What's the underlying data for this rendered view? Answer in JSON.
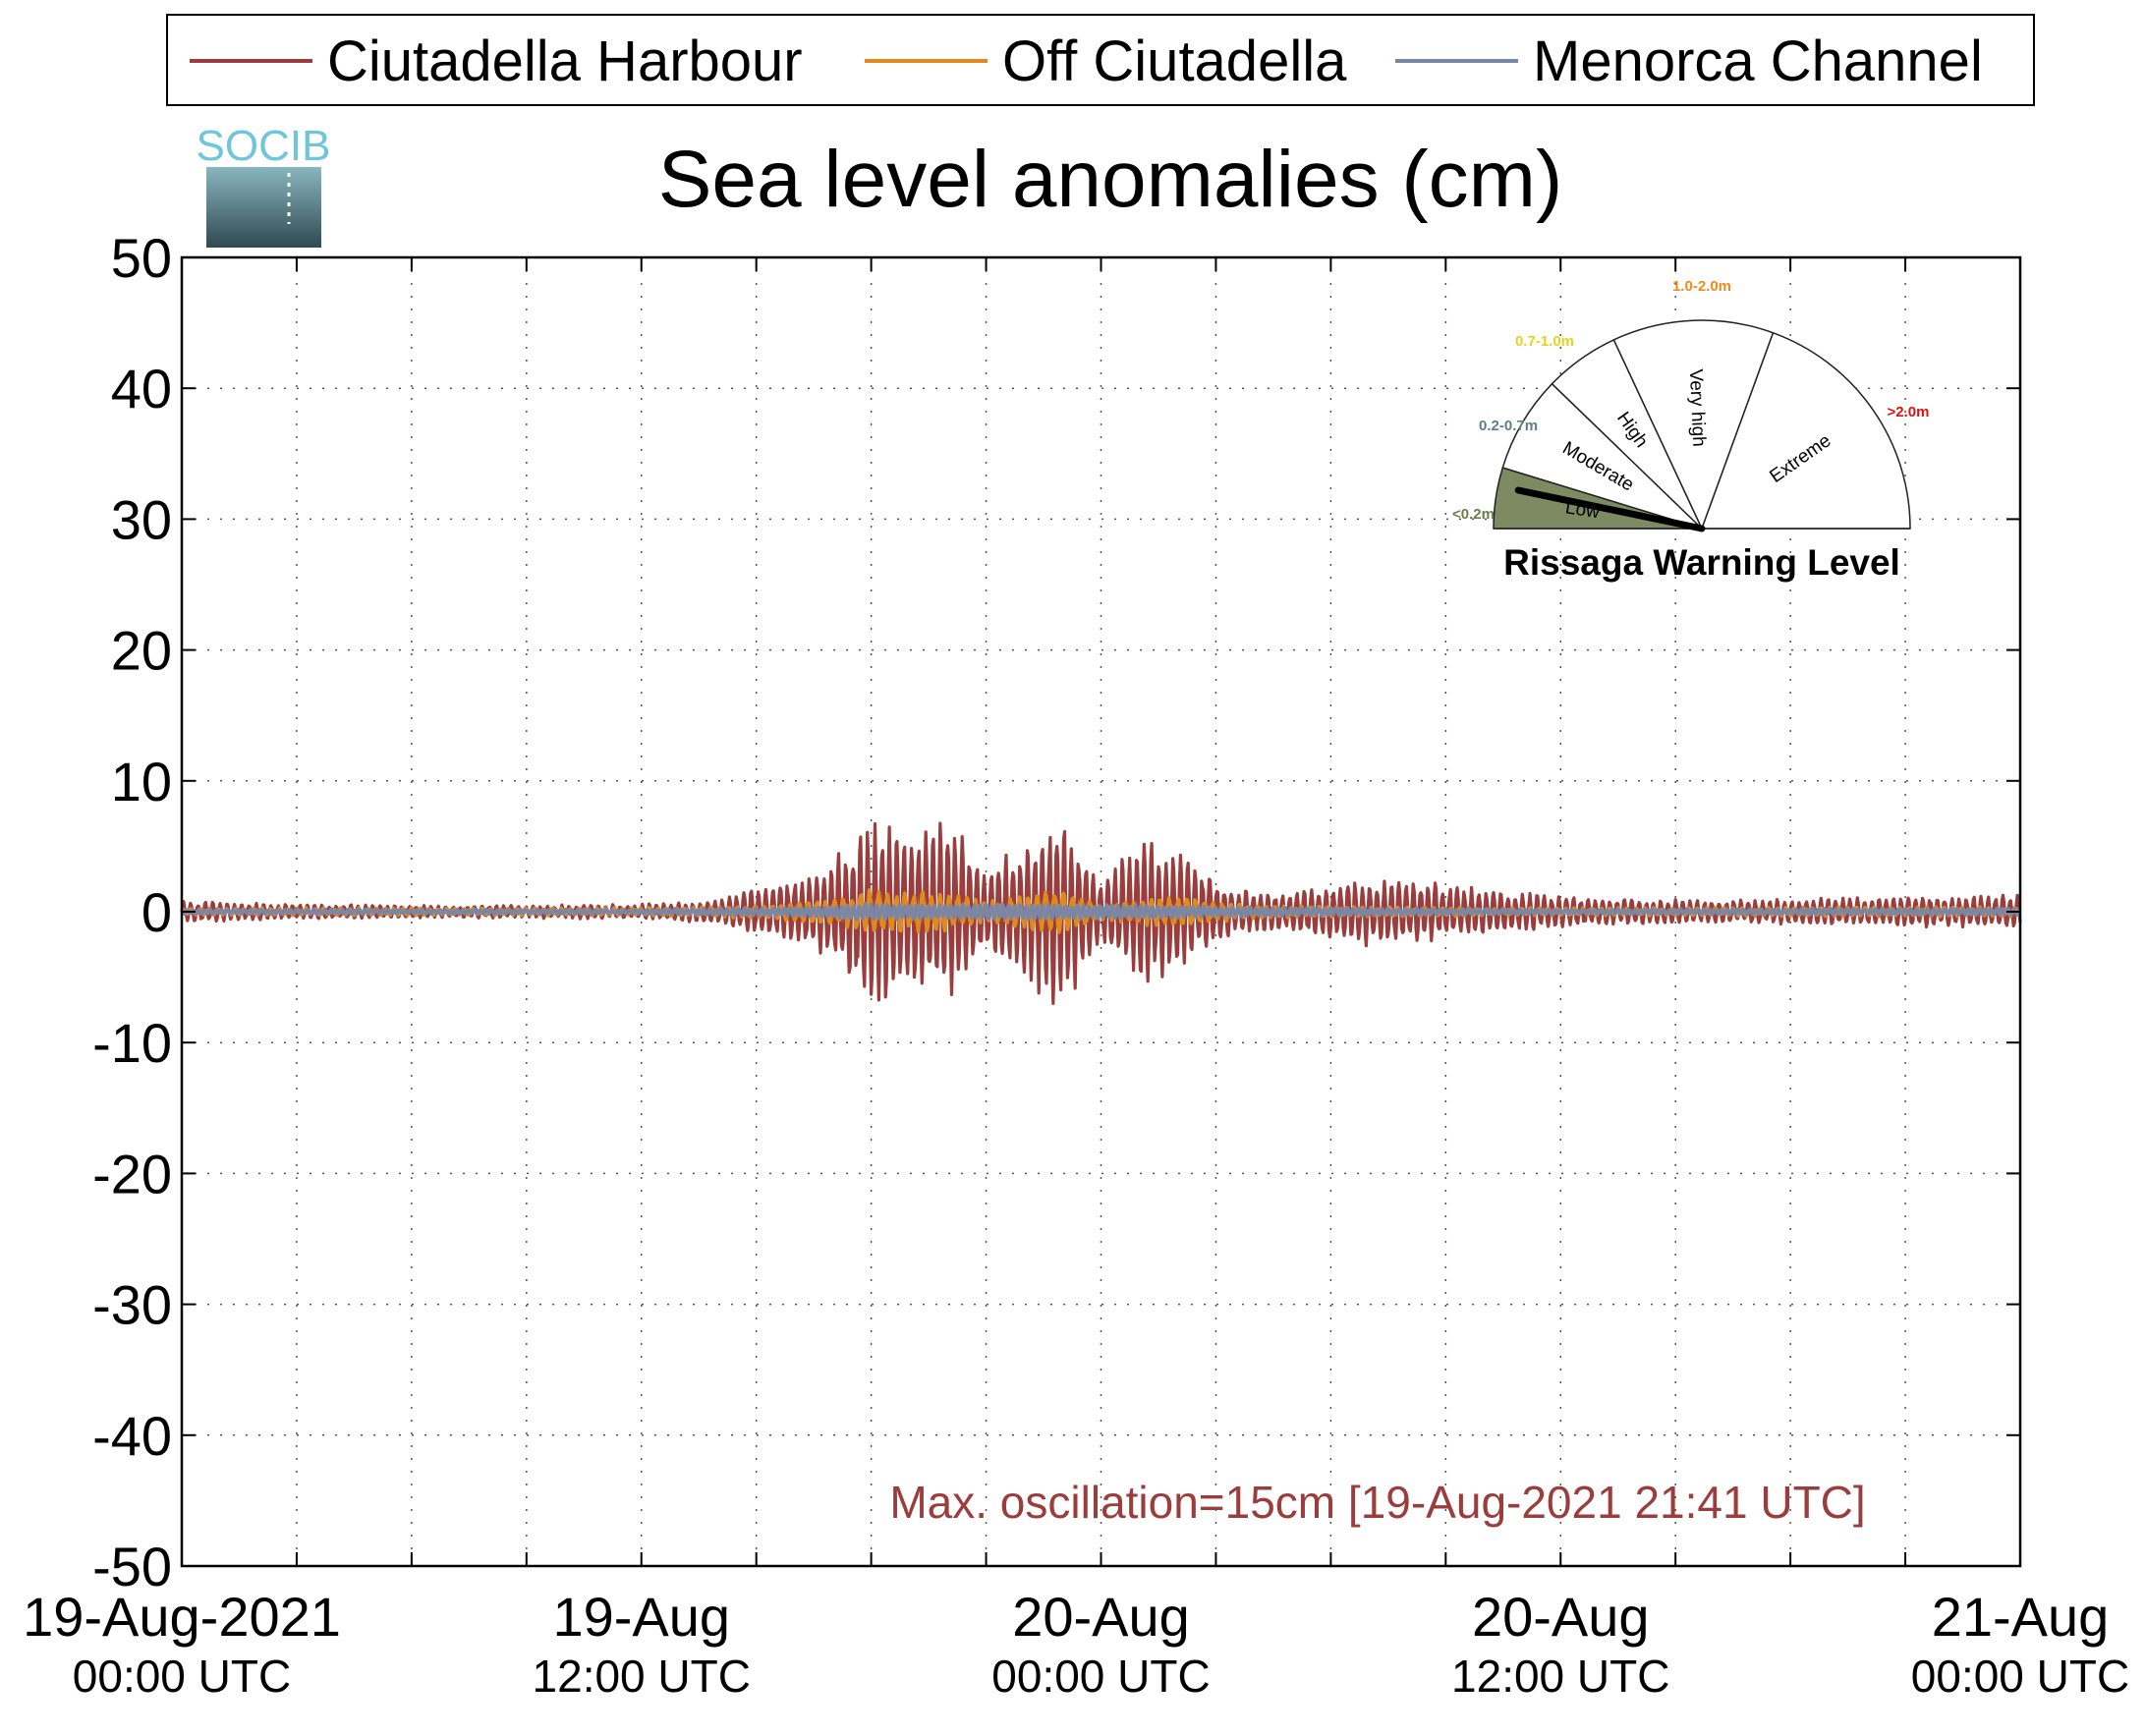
{
  "chart_data": {
    "type": "line",
    "title": "Sea level anomalies (cm)",
    "xlabel": "",
    "ylabel": "",
    "ylim": [
      -50,
      50
    ],
    "yticks": [
      50,
      40,
      30,
      20,
      10,
      0,
      -10,
      -20,
      -30,
      -40,
      -50
    ],
    "grid": true,
    "legend_position": "top",
    "x_range_hours": [
      0,
      48
    ],
    "x_start": "19-Aug-2021 00:00 UTC",
    "x_end": "21-Aug-2021 00:00 UTC",
    "xticks": [
      {
        "hour": 0,
        "line1": "19-Aug-2021",
        "line2": "00:00 UTC"
      },
      {
        "hour": 12,
        "line1": "19-Aug",
        "line2": "12:00 UTC"
      },
      {
        "hour": 24,
        "line1": "20-Aug",
        "line2": "00:00 UTC"
      },
      {
        "hour": 36,
        "line1": "20-Aug",
        "line2": "12:00 UTC"
      },
      {
        "hour": 48,
        "line1": "21-Aug",
        "line2": "00:00 UTC"
      }
    ],
    "series": [
      {
        "name": "Ciutadella Harbour",
        "color": "#9b3d3d",
        "envelope_hours": [
          0,
          3,
          6,
          9,
          12,
          14,
          15,
          16,
          17,
          18,
          19,
          20,
          21,
          22,
          23,
          24,
          25,
          26,
          27,
          28,
          29,
          30,
          31,
          32,
          33,
          34,
          36,
          38,
          40,
          42,
          44,
          46,
          48
        ],
        "envelope_cm": [
          0.8,
          0.6,
          0.5,
          0.5,
          0.6,
          0.9,
          1.8,
          2.5,
          4.0,
          7.4,
          6.5,
          7.2,
          3.5,
          5.5,
          7.6,
          2.5,
          5.8,
          4.5,
          2.5,
          1.5,
          1.6,
          2.0,
          2.7,
          2.5,
          2.2,
          1.8,
          1.2,
          1.0,
          0.9,
          1.0,
          1.1,
          1.2,
          1.3
        ]
      },
      {
        "name": "Off Ciutadella",
        "color": "#e08a1e",
        "envelope_hours": [
          0,
          12,
          15,
          17,
          18,
          19,
          20,
          21,
          22,
          23,
          24,
          25,
          26,
          27,
          28,
          30,
          32,
          34,
          36,
          48
        ],
        "envelope_cm": [
          0.3,
          0.3,
          0.5,
          1.0,
          1.8,
          1.6,
          1.5,
          0.8,
          1.3,
          1.8,
          0.6,
          1.1,
          1.3,
          0.8,
          0.5,
          0.4,
          0.4,
          0.3,
          0.3,
          0.4
        ]
      },
      {
        "name": "Menorca Channel",
        "color": "#7a86a6",
        "envelope_hours": [
          0,
          12,
          16,
          18,
          20,
          22,
          24,
          26,
          28,
          32,
          36,
          48
        ],
        "envelope_cm": [
          0.2,
          0.2,
          0.4,
          0.7,
          0.6,
          0.7,
          0.6,
          0.5,
          0.4,
          0.3,
          0.2,
          0.3
        ]
      }
    ],
    "annotation": "Max. oscillation=15cm [19-Aug-2021 21:41 UTC]",
    "annotation_color": "#9b3d3d"
  },
  "logo": {
    "text": "SOCIB",
    "color": "#6ec6da"
  },
  "gauge": {
    "title": "Rissaga Warning Level",
    "current_level": "Low",
    "needle_value_fraction": 0.06,
    "sectors": [
      {
        "name": "Low",
        "range": "<0.2m",
        "range_color": "#6b7d4a",
        "fill": "#7e8a62"
      },
      {
        "name": "Moderate",
        "range": "0.2-0.7m",
        "range_color": "#5b7f86",
        "fill": "#ffffff"
      },
      {
        "name": "High",
        "range": "0.7-1.0m",
        "range_color": "#e9d21a",
        "fill": "#ffffff"
      },
      {
        "name": "Very high",
        "range": "1.0-2.0m",
        "range_color": "#f08a1a",
        "fill": "#ffffff"
      },
      {
        "name": "Extreme",
        "range": ">2.0m",
        "range_color": "#e01010",
        "fill": "#ffffff"
      }
    ]
  }
}
